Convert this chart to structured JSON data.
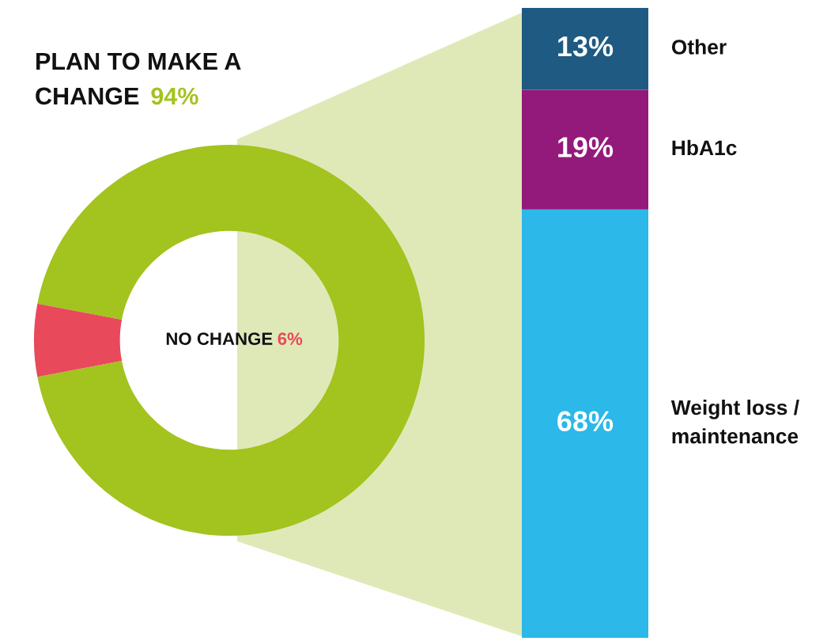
{
  "chart_data": [
    {
      "type": "donut",
      "categories": [
        "PLAN TO MAKE A CHANGE",
        "NO CHANGE"
      ],
      "values": [
        94,
        6
      ],
      "colors": [
        "#a3c31e",
        "#e8495b"
      ],
      "value_labels": [
        "94%",
        "6%"
      ]
    },
    {
      "type": "bar",
      "stacked": true,
      "categories": [
        null
      ],
      "series": [
        {
          "name": "Weight loss / maintenance",
          "color": "#2cb8e8",
          "values": [
            68
          ],
          "value_labels": [
            "68%"
          ]
        },
        {
          "name": "HbA1c",
          "color": "#93197a",
          "values": [
            19
          ],
          "value_labels": [
            "19%"
          ]
        },
        {
          "name": "Other",
          "color": "#1e5a82",
          "values": [
            13
          ],
          "value_labels": [
            "13%"
          ]
        }
      ]
    }
  ]
}
